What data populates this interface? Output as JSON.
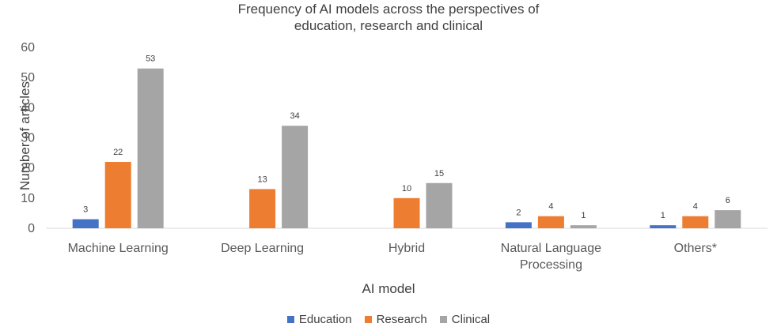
{
  "chart_data": {
    "type": "bar",
    "title_lines": [
      "Frequency of AI models across the perspectives of",
      "education, research and clinical"
    ],
    "xlabel": "AI model",
    "ylabel": "Number of articles",
    "ylim": [
      0,
      60
    ],
    "yticks": [
      0,
      10,
      20,
      30,
      40,
      50,
      60
    ],
    "grid": false,
    "legend_position": "bottom",
    "categories": [
      [
        "Machine Learning"
      ],
      [
        "Deep Learning"
      ],
      [
        "Hybrid"
      ],
      [
        "Natural Language",
        "Processing"
      ],
      [
        "Others*"
      ]
    ],
    "series": [
      {
        "name": "Education",
        "color": "#4472C4",
        "values": [
          3,
          null,
          null,
          2,
          1
        ]
      },
      {
        "name": "Research",
        "color": "#ED7D31",
        "values": [
          22,
          13,
          10,
          4,
          4
        ]
      },
      {
        "name": "Clinical",
        "color": "#A5A5A5",
        "values": [
          53,
          34,
          15,
          1,
          6
        ]
      }
    ]
  }
}
